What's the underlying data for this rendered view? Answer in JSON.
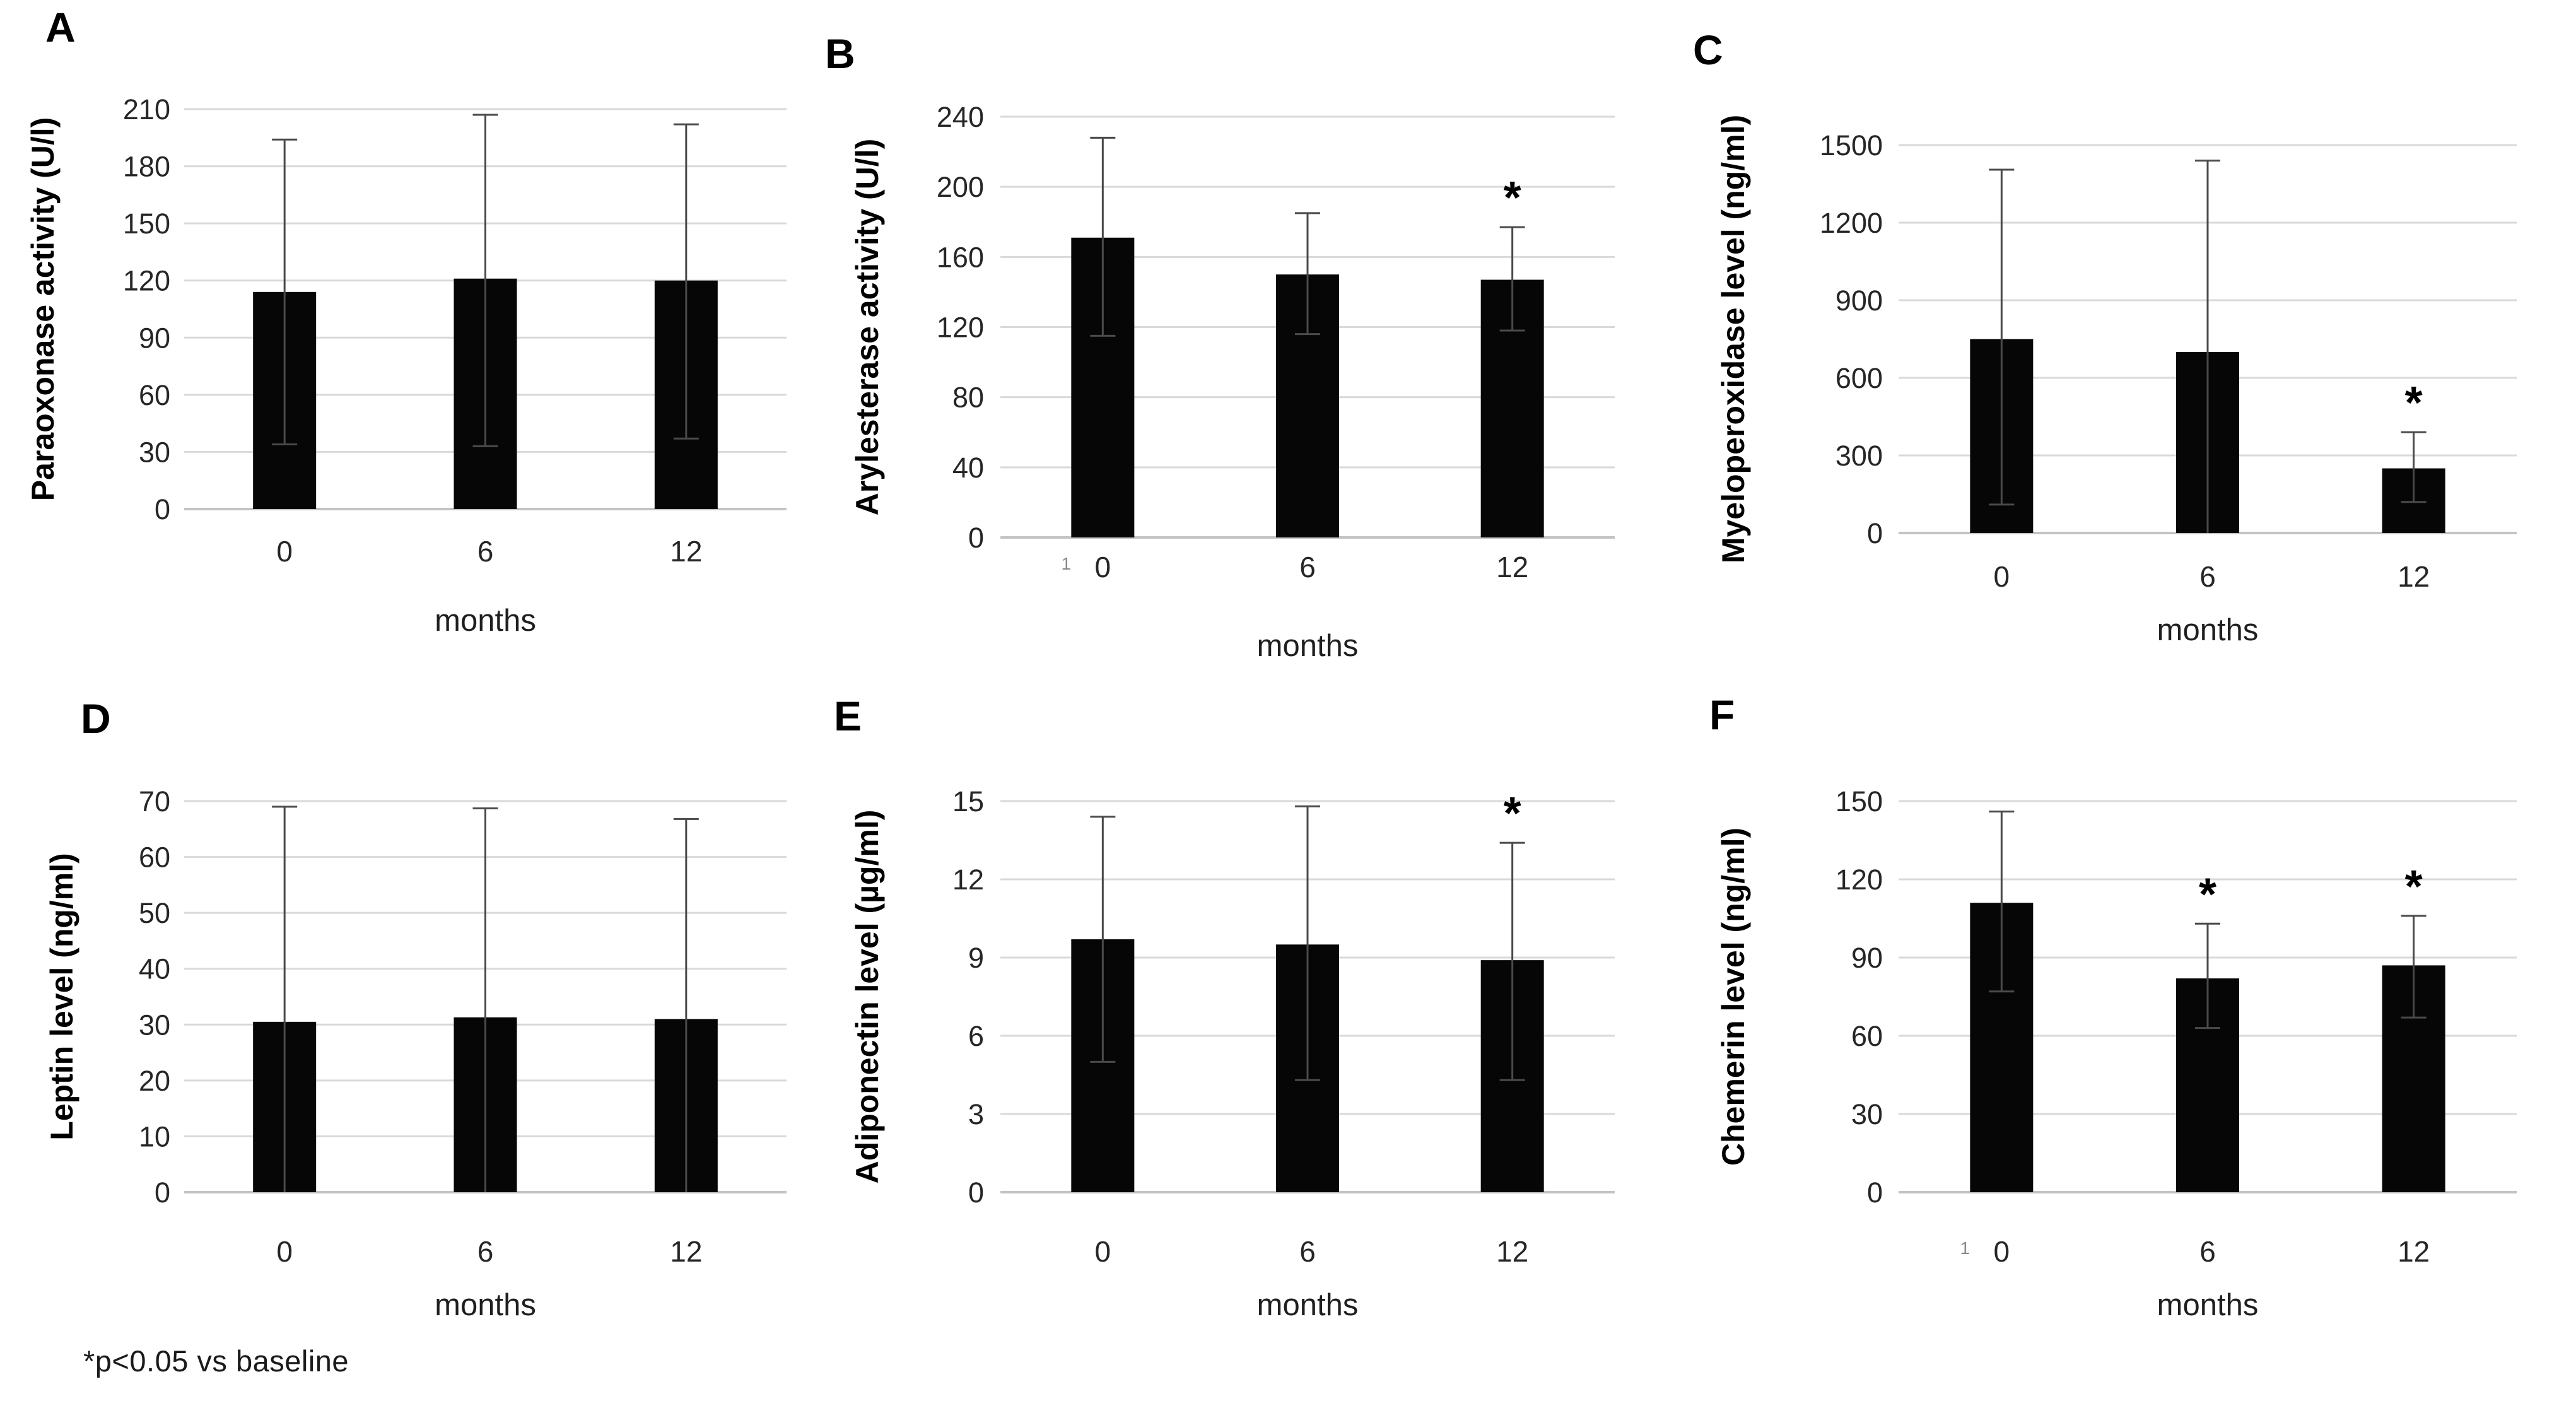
{
  "figure": {
    "footnote": "*p<0.05 vs baseline",
    "x_tick_stray_mark": "1"
  },
  "chart_data": [
    {
      "panel": "A",
      "type": "bar",
      "ylabel": "Paraoxonase activity (U/l)",
      "xlabel": "months",
      "categories": [
        "0",
        "6",
        "12"
      ],
      "values": [
        114,
        121,
        120
      ],
      "err_low": [
        34,
        33,
        37
      ],
      "err_high": [
        194,
        207,
        202
      ],
      "low_caps": [
        true,
        true,
        true
      ],
      "sig_stars": [
        false,
        false,
        false
      ],
      "ylim": [
        0,
        210
      ],
      "ystep": 30,
      "grid": true,
      "bar_color": "#060606",
      "tick_artifact": null
    },
    {
      "panel": "B",
      "type": "bar",
      "ylabel": "Arylesterase activity (U/l)",
      "xlabel": "months",
      "categories": [
        "0",
        "6",
        "12"
      ],
      "values": [
        171,
        150,
        147
      ],
      "err_low": [
        115,
        116,
        118
      ],
      "err_high": [
        228,
        185,
        177
      ],
      "low_caps": [
        true,
        true,
        true
      ],
      "sig_stars": [
        false,
        false,
        true
      ],
      "ylim": [
        0,
        240
      ],
      "ystep": 40,
      "grid": true,
      "bar_color": "#060606",
      "tick_artifact": "1"
    },
    {
      "panel": "C",
      "type": "bar",
      "ylabel": "Myeloperoxidase level (ng/ml)",
      "xlabel": "months",
      "categories": [
        "0",
        "6",
        "12"
      ],
      "values": [
        750,
        700,
        250
      ],
      "err_low": [
        110,
        0,
        120
      ],
      "err_high": [
        1405,
        1440,
        390
      ],
      "low_caps": [
        true,
        false,
        true
      ],
      "sig_stars": [
        false,
        false,
        true
      ],
      "ylim": [
        0,
        1500
      ],
      "ystep": 300,
      "grid": true,
      "bar_color": "#060606",
      "tick_artifact": null
    },
    {
      "panel": "D",
      "type": "bar",
      "ylabel": "Leptin level (ng/ml)",
      "xlabel": "months",
      "categories": [
        "0",
        "6",
        "12"
      ],
      "values": [
        30.5,
        31.3,
        31
      ],
      "err_low": [
        0,
        0,
        0
      ],
      "err_high": [
        69,
        68.7,
        66.8
      ],
      "low_caps": [
        false,
        false,
        false
      ],
      "sig_stars": [
        false,
        false,
        false
      ],
      "ylim": [
        0,
        70
      ],
      "ystep": 10,
      "grid": true,
      "bar_color": "#060606",
      "tick_artifact": null
    },
    {
      "panel": "E",
      "type": "bar",
      "ylabel": "Adiponectin level (µg/ml)",
      "xlabel": "months",
      "categories": [
        "0",
        "6",
        "12"
      ],
      "values": [
        9.7,
        9.5,
        8.9
      ],
      "err_low": [
        5.0,
        4.3,
        4.3
      ],
      "err_high": [
        14.4,
        14.8,
        13.4
      ],
      "low_caps": [
        true,
        true,
        true
      ],
      "sig_stars": [
        false,
        false,
        true
      ],
      "ylim": [
        0,
        15
      ],
      "ystep": 3,
      "grid": true,
      "bar_color": "#060606",
      "tick_artifact": null
    },
    {
      "panel": "F",
      "type": "bar",
      "ylabel": "Chemerin level (ng/ml)",
      "xlabel": "months",
      "categories": [
        "0",
        "6",
        "12"
      ],
      "values": [
        111,
        82,
        87
      ],
      "err_low": [
        77,
        63,
        67
      ],
      "err_high": [
        146,
        103,
        106
      ],
      "low_caps": [
        true,
        true,
        true
      ],
      "sig_stars": [
        false,
        true,
        true
      ],
      "ylim": [
        0,
        150
      ],
      "ystep": 30,
      "grid": true,
      "bar_color": "#060606",
      "tick_artifact": "1"
    }
  ]
}
